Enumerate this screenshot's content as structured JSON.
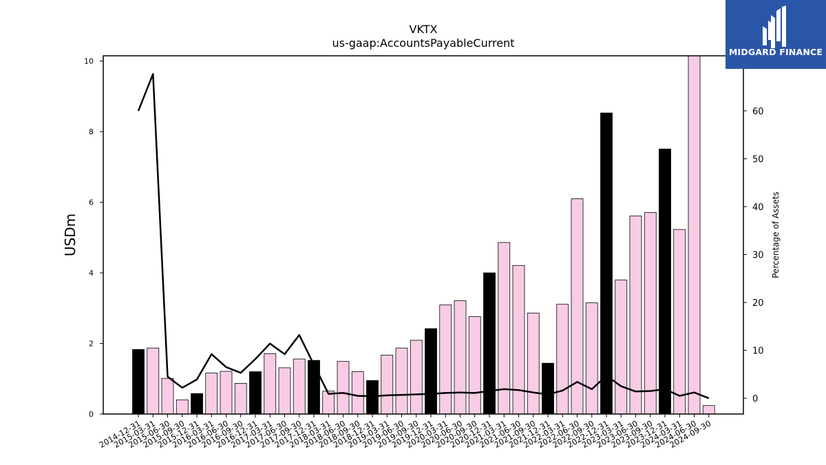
{
  "brand": {
    "name": "MIDGARD FINANCE",
    "bg_color": "#2a56a8",
    "icon": "midgard-m-logo-icon"
  },
  "chart_data": {
    "type": "bar",
    "title": "VKTX",
    "subtitle": "us-gaap:AccountsPayableCurrent",
    "ylabel": "USDm",
    "y2label": "Percentage of Assets",
    "ylim": [
      0,
      10.15
    ],
    "y2lim": [
      -3.3,
      71.5
    ],
    "yticks": [
      0,
      2,
      4,
      6,
      8,
      10
    ],
    "y2ticks": [
      0,
      10,
      20,
      30,
      40,
      50,
      60
    ],
    "categories": [
      "2014-12-31",
      "2015-03-31",
      "2015-06-30",
      "2015-09-30",
      "2015-12-31",
      "2016-03-31",
      "2016-06-30",
      "2016-09-30",
      "2016-12-31",
      "2017-03-31",
      "2017-06-30",
      "2017-09-30",
      "2017-12-31",
      "2018-03-31",
      "2018-06-30",
      "2018-09-30",
      "2018-12-31",
      "2019-03-31",
      "2019-06-30",
      "2019-09-30",
      "2019-12-31",
      "2020-03-31",
      "2020-06-30",
      "2020-09-30",
      "2020-12-31",
      "2021-03-31",
      "2021-06-30",
      "2021-09-30",
      "2021-12-31",
      "2022-03-31",
      "2022-06-30",
      "2022-09-30",
      "2022-12-31",
      "2023-03-31",
      "2023-06-30",
      "2023-09-30",
      "2023-12-31",
      "2024-03-31",
      "2024-06-30",
      "2024-09-30"
    ],
    "series": [
      {
        "kind": "bar",
        "values": [
          1.83,
          1.87,
          1.01,
          0.4,
          0.58,
          1.16,
          1.21,
          0.87,
          1.2,
          1.71,
          1.31,
          1.56,
          1.52,
          0.65,
          1.49,
          1.2,
          0.95,
          1.67,
          1.87,
          2.09,
          2.42,
          3.09,
          3.21,
          2.76,
          4.0,
          4.86,
          4.21,
          2.86,
          1.44,
          3.11,
          6.1,
          3.15,
          8.53,
          3.8,
          5.61,
          5.71,
          7.51,
          5.23,
          10.15,
          0.24
        ],
        "colors": {
          "year_end": "#000000",
          "quarter": "#f9cce6",
          "edge": "#000000"
        }
      },
      {
        "kind": "line",
        "axis": "right",
        "color": "#000000",
        "values": [
          60.0,
          67.7,
          4.5,
          2.2,
          3.9,
          9.2,
          6.5,
          5.3,
          8.2,
          11.4,
          9.2,
          13.2,
          7.0,
          0.9,
          1.1,
          0.5,
          0.4,
          0.6,
          0.7,
          0.8,
          0.9,
          1.1,
          1.2,
          1.1,
          1.5,
          1.9,
          1.7,
          1.2,
          0.8,
          1.6,
          3.4,
          1.9,
          4.7,
          2.5,
          1.4,
          1.5,
          1.9,
          0.5,
          1.2,
          0.0
        ]
      }
    ],
    "grid": false,
    "legend": "none"
  }
}
